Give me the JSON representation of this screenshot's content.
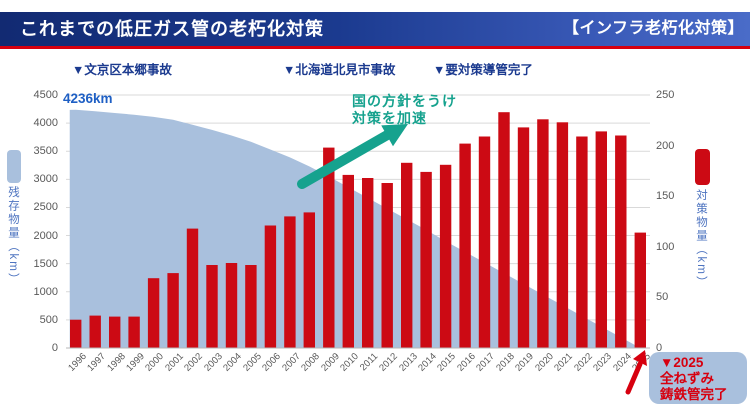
{
  "header": {
    "title": "これまでの低圧ガス管の老朽化対策",
    "tag": "【インフラ老朽化対策】"
  },
  "annotations": {
    "event1": "▼文京区本郷事故",
    "event2": "▼北海道北見市事故",
    "event3": "▼要対策導管完了",
    "accel_line1": "国の方針をうけ",
    "accel_line2": "対策を加速",
    "start_label": "4236km",
    "callout_line1": "▼2025",
    "callout_line2": "全ねずみ",
    "callout_line3": "鋳鉄管完了"
  },
  "chart_data": {
    "type": "combo",
    "title": "これまでの低圧ガス管の老朽化対策",
    "categories": [
      "1996",
      "1997",
      "1998",
      "1999",
      "2000",
      "2001",
      "2002",
      "2003",
      "2004",
      "2005",
      "2006",
      "2007",
      "2008",
      "2009",
      "2010",
      "2011",
      "2012",
      "2013",
      "2014",
      "2015",
      "2016",
      "2017",
      "2018",
      "2019",
      "2020",
      "2021",
      "2022",
      "2023",
      "2024",
      "2025"
    ],
    "series": [
      {
        "name": "残存物量",
        "type": "area",
        "axis": "left",
        "values": [
          4236,
          4210,
          4180,
          4150,
          4110,
          4060,
          3970,
          3880,
          3780,
          3670,
          3530,
          3390,
          3230,
          3050,
          2860,
          2670,
          2480,
          2290,
          2100,
          1900,
          1710,
          1520,
          1330,
          1140,
          950,
          760,
          570,
          380,
          190,
          0
        ]
      },
      {
        "name": "対策物量",
        "type": "bar",
        "axis": "right",
        "values": [
          28,
          32,
          31,
          31,
          69,
          74,
          118,
          82,
          84,
          82,
          121,
          130,
          134,
          198,
          171,
          168,
          163,
          183,
          174,
          181,
          202,
          209,
          233,
          218,
          226,
          223,
          209,
          214,
          210,
          114
        ]
      }
    ],
    "left_axis": {
      "label": "残存物量（km）",
      "min": 0,
      "max": 4500,
      "tick_step": 500
    },
    "right_axis": {
      "label": "対策物量（km）",
      "min": 0,
      "max": 250,
      "tick_step": 50
    },
    "grid": "horizontal",
    "legend_position": "sides",
    "first_point_label": "4236km"
  },
  "colors": {
    "header_underline": "#d7000f",
    "annotation_blue": "#1b3a8f",
    "area_fill": "#a9c0dd",
    "bar_fill": "#cc0a14",
    "teal": "#16a28e",
    "callout_bg": "#a9c0dd",
    "callout_text": "#d7000f",
    "axis_text": "#595959",
    "grid_line": "#d9d9d9",
    "baseline": "#b7b7b7",
    "start_label_blue": "#1e5fc4",
    "legend_text": "#4e74c0",
    "red_arrow": "#d7000f"
  }
}
